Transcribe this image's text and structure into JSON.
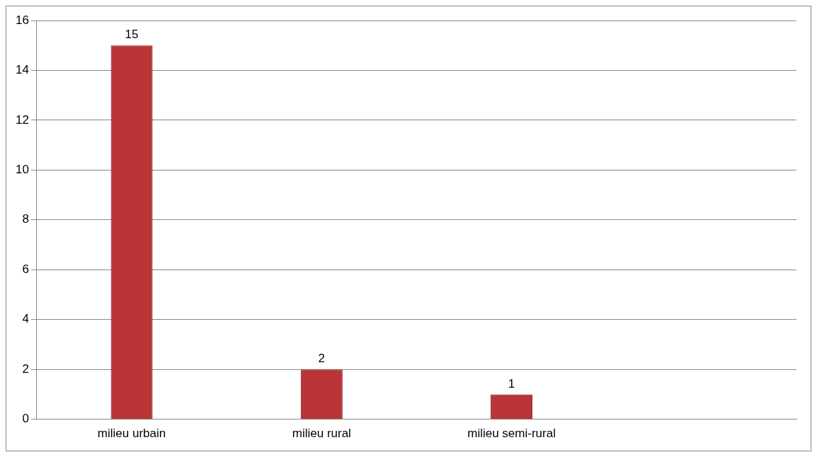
{
  "chart_data": {
    "type": "bar",
    "categories": [
      "milieu urbain",
      "milieu rural",
      "milieu semi-rural",
      null
    ],
    "values": [
      15,
      2,
      1,
      null
    ],
    "color": "#b83436",
    "ylim": [
      0,
      16
    ],
    "yticks": [
      0,
      2,
      4,
      6,
      8,
      10,
      12,
      14,
      16
    ],
    "grid": "y",
    "legend": false,
    "data_labels": true
  }
}
